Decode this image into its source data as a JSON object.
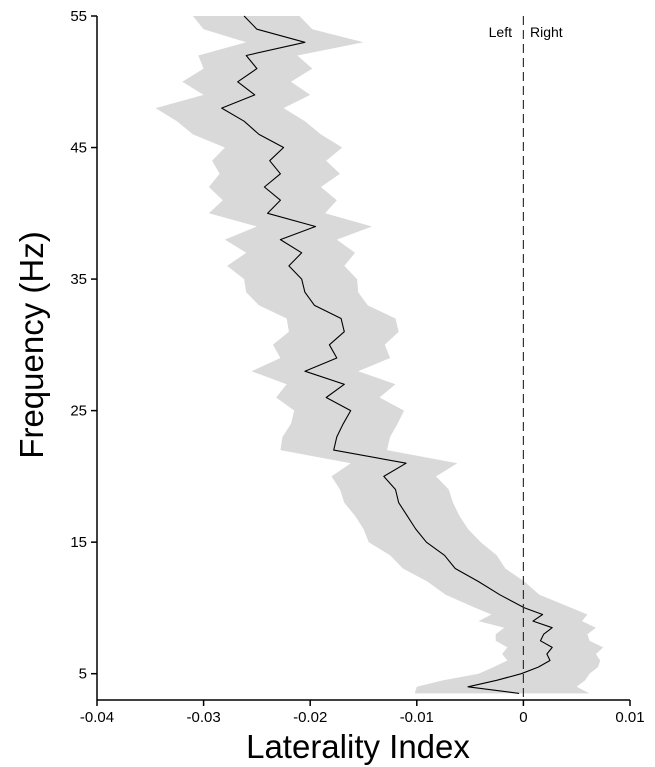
{
  "chart_data": {
    "type": "line",
    "title": "",
    "xlabel": "Laterality Index",
    "ylabel": "Frequency (Hz)",
    "xlim": [
      -0.04,
      0.01
    ],
    "ylim": [
      3,
      55
    ],
    "xticks": [
      -0.04,
      -0.03,
      -0.02,
      -0.01,
      0,
      0.01
    ],
    "xtick_labels": [
      "-0.04",
      "-0.03",
      "-0.02",
      "-0.01",
      "0",
      "0.01"
    ],
    "yticks": [
      5,
      15,
      25,
      35,
      45,
      55
    ],
    "ytick_labels": [
      "5",
      "15",
      "25",
      "35",
      "45",
      "55"
    ],
    "grid": false,
    "reference_line": {
      "x": 0,
      "style": "dashed"
    },
    "annotations": [
      "Left",
      "Right"
    ],
    "colors": {
      "line": "#000000",
      "band": "#d9d9d9",
      "axis": "#000000"
    },
    "series": [
      {
        "frequency": [
          3.5,
          4,
          4.5,
          5,
          5.5,
          6,
          6.5,
          7,
          7.5,
          8,
          8.5,
          9,
          9.5,
          10,
          11,
          12,
          13,
          14,
          15,
          16,
          17,
          18,
          19,
          20,
          21,
          22,
          23,
          24,
          25,
          26,
          27,
          28,
          29,
          30,
          31,
          32,
          33,
          34,
          35,
          36,
          37,
          38,
          39,
          40,
          41,
          42,
          43,
          44,
          45,
          46,
          47,
          48,
          49,
          50,
          51,
          52,
          53,
          54,
          55
        ],
        "values": [
          -0.0004,
          -0.0052,
          -0.0025,
          -0.0002,
          0.0014,
          0.0025,
          0.0022,
          0.0027,
          0.0016,
          0.0019,
          0.0027,
          0.0009,
          0.0018,
          0.0001,
          -0.0022,
          -0.0042,
          -0.0064,
          -0.0074,
          -0.0091,
          -0.0101,
          -0.0109,
          -0.0117,
          -0.012,
          -0.0131,
          -0.011,
          -0.0178,
          -0.0175,
          -0.0169,
          -0.0162,
          -0.0185,
          -0.0168,
          -0.0205,
          -0.0175,
          -0.0182,
          -0.0168,
          -0.0171,
          -0.0196,
          -0.0205,
          -0.0208,
          -0.022,
          -0.0208,
          -0.0228,
          -0.0195,
          -0.024,
          -0.0228,
          -0.0243,
          -0.0228,
          -0.0238,
          -0.0225,
          -0.0248,
          -0.0262,
          -0.0283,
          -0.0252,
          -0.0268,
          -0.025,
          -0.026,
          -0.0205,
          -0.025,
          -0.0262
        ],
        "ci_lower": [
          -0.0102,
          -0.01,
          -0.0075,
          -0.0042,
          -0.0028,
          -0.0015,
          -0.002,
          -0.0015,
          -0.0026,
          -0.0026,
          -0.0018,
          -0.0042,
          -0.003,
          -0.0045,
          -0.0073,
          -0.009,
          -0.0113,
          -0.0125,
          -0.0145,
          -0.015,
          -0.0158,
          -0.0168,
          -0.0172,
          -0.018,
          -0.0162,
          -0.0228,
          -0.0226,
          -0.0218,
          -0.0215,
          -0.0232,
          -0.0222,
          -0.0255,
          -0.0228,
          -0.0235,
          -0.022,
          -0.0222,
          -0.0248,
          -0.026,
          -0.0262,
          -0.0278,
          -0.026,
          -0.028,
          -0.025,
          -0.0295,
          -0.0282,
          -0.0295,
          -0.0285,
          -0.0292,
          -0.028,
          -0.031,
          -0.0325,
          -0.0345,
          -0.03,
          -0.032,
          -0.03,
          -0.0305,
          -0.026,
          -0.03,
          -0.031
        ],
        "ci_upper": [
          0.0062,
          0.005,
          0.0058,
          0.0062,
          0.007,
          0.0072,
          0.0068,
          0.0075,
          0.0062,
          0.006,
          0.0068,
          0.0055,
          0.006,
          0.0045,
          0.0015,
          0.0001,
          -0.0017,
          -0.0025,
          -0.004,
          -0.0052,
          -0.006,
          -0.0066,
          -0.007,
          -0.0082,
          -0.0062,
          -0.0128,
          -0.0125,
          -0.0118,
          -0.0112,
          -0.0135,
          -0.012,
          -0.0155,
          -0.0125,
          -0.013,
          -0.0117,
          -0.012,
          -0.0146,
          -0.0155,
          -0.0156,
          -0.0168,
          -0.0158,
          -0.0175,
          -0.0142,
          -0.0186,
          -0.0175,
          -0.019,
          -0.0172,
          -0.0185,
          -0.017,
          -0.019,
          -0.0205,
          -0.0225,
          -0.02,
          -0.0218,
          -0.0198,
          -0.0212,
          -0.015,
          -0.0198,
          -0.021
        ]
      }
    ]
  }
}
